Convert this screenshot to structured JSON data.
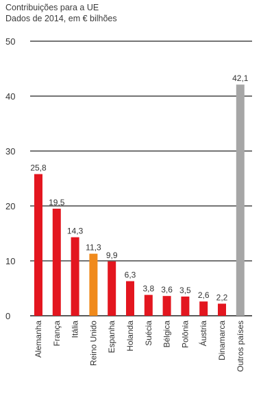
{
  "title": "Contribuições para a UE",
  "subtitle": "Dados de 2014, em € bilhões",
  "chart_data": {
    "type": "bar",
    "title": "Contribuições para a UE",
    "subtitle": "Dados de 2014, em € bilhões",
    "xlabel": "",
    "ylabel": "",
    "ylim": [
      0,
      50
    ],
    "yticks": [
      0,
      10,
      20,
      30,
      40,
      50
    ],
    "grid": true,
    "categories": [
      "Alemanha",
      "França",
      "Itália",
      "Reino Unido",
      "Espanha",
      "Holanda",
      "Suécia",
      "Bélgica",
      "Polônia",
      "Áustria",
      "Dinamarca",
      "Outros países"
    ],
    "values": [
      25.8,
      19.5,
      14.3,
      11.3,
      9.9,
      6.3,
      3.8,
      3.6,
      3.5,
      2.6,
      2.2,
      42.1
    ],
    "value_labels": [
      "25,8",
      "19,5",
      "14,3",
      "11,3",
      "9,9",
      "6,3",
      "3,8",
      "3,6",
      "3,5",
      "2,6",
      "2,2",
      "42,1"
    ],
    "colors": [
      "#e3161f",
      "#e3161f",
      "#e3161f",
      "#f08a1c",
      "#e3161f",
      "#e3161f",
      "#e3161f",
      "#e3161f",
      "#e3161f",
      "#e3161f",
      "#e3161f",
      "#a6a6a6"
    ]
  }
}
